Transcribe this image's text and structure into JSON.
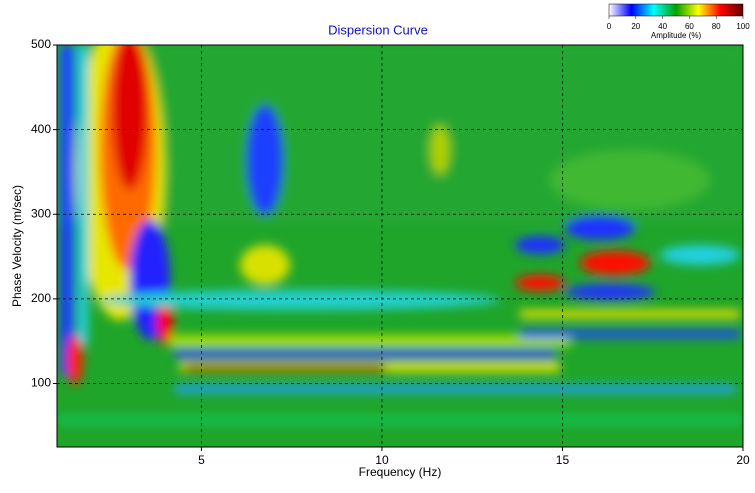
{
  "chart_data": {
    "type": "heatmap",
    "title": "Dispersion Curve",
    "x_label": "Frequency (Hz)",
    "y_label": "Phase Velocity (m/sec)",
    "xlim": [
      1,
      20
    ],
    "xticks": [
      5,
      10,
      15,
      20
    ],
    "ylim": [
      25,
      500
    ],
    "yticks": [
      100,
      200,
      300,
      400,
      500
    ],
    "grid": true,
    "colorbar": {
      "label": "Amplitude (%)",
      "lim": [
        0,
        100
      ],
      "ticks": [
        0,
        20,
        40,
        60,
        80,
        100
      ],
      "colors": [
        "#ffffff",
        "#0000ff",
        "#00ffff",
        "#00a000",
        "#ffff00",
        "#ff0000",
        "#600000"
      ]
    }
  }
}
